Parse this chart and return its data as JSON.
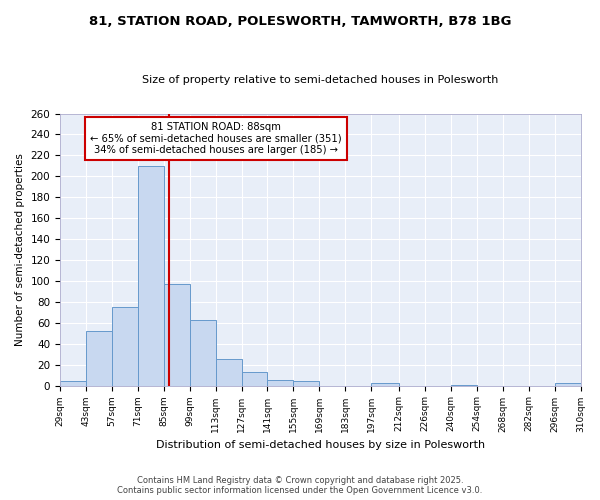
{
  "title1": "81, STATION ROAD, POLESWORTH, TAMWORTH, B78 1BG",
  "title2": "Size of property relative to semi-detached houses in Polesworth",
  "xlabel": "Distribution of semi-detached houses by size in Polesworth",
  "ylabel": "Number of semi-detached properties",
  "bin_edges": [
    29,
    43,
    57,
    71,
    85,
    99,
    113,
    127,
    141,
    155,
    169,
    183,
    197,
    212,
    226,
    240,
    254,
    268,
    282,
    296,
    310
  ],
  "bar_heights": [
    4,
    52,
    75,
    210,
    97,
    63,
    25,
    13,
    5,
    4,
    0,
    0,
    2,
    0,
    0,
    1,
    0,
    0,
    0,
    2
  ],
  "bar_color": "#c8d8f0",
  "bar_edge_color": "#6699cc",
  "red_line_x": 88,
  "annotation_title": "81 STATION ROAD: 88sqm",
  "annotation_line1": "← 65% of semi-detached houses are smaller (351)",
  "annotation_line2": "34% of semi-detached houses are larger (185) →",
  "annotation_box_color": "#ffffff",
  "annotation_box_edge": "#cc0000",
  "red_line_color": "#cc0000",
  "plot_bg_color": "#e8eef8",
  "fig_bg_color": "#ffffff",
  "grid_color": "#ffffff",
  "footer1": "Contains HM Land Registry data © Crown copyright and database right 2025.",
  "footer2": "Contains public sector information licensed under the Open Government Licence v3.0.",
  "ylim": [
    0,
    260
  ],
  "yticks": [
    0,
    20,
    40,
    60,
    80,
    100,
    120,
    140,
    160,
    180,
    200,
    220,
    240,
    260
  ]
}
